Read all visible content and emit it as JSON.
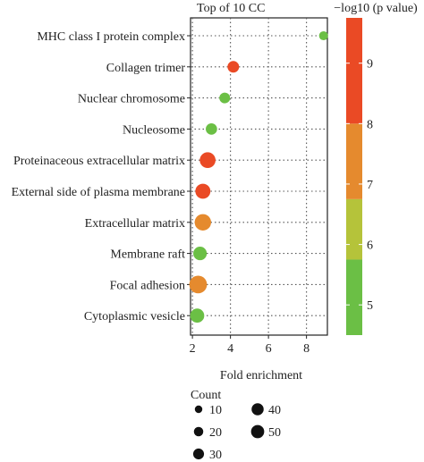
{
  "chart_data": {
    "type": "scatter",
    "title": "Top of 10 CC",
    "xlabel": "Fold enrichment",
    "ylabel": "",
    "xlim": [
      1.9,
      9.1
    ],
    "x_ticks": [
      "2",
      "4",
      "6",
      "8"
    ],
    "categories": [
      "MHC class I protein complex",
      "Collagen trimer",
      "Nuclear chromosome",
      "Nucleosome",
      "Proteinaceous extracellular matrix",
      "External side of plasma membrane",
      "Extracellular matrix",
      "Membrane raft",
      "Focal adhesion",
      "Cytoplasmic vesicle"
    ],
    "points": [
      {
        "term": "MHC class I protein complex",
        "fold_enrichment": 8.9,
        "count": 6,
        "neg_log10_p": 5.0
      },
      {
        "term": "Collagen trimer",
        "fold_enrichment": 4.15,
        "count": 14,
        "neg_log10_p": 9.3
      },
      {
        "term": "Nuclear chromosome",
        "fold_enrichment": 3.7,
        "count": 11,
        "neg_log10_p": 5.0
      },
      {
        "term": "Nucleosome",
        "fold_enrichment": 3.0,
        "count": 13,
        "neg_log10_p": 5.0
      },
      {
        "term": "Proteinaceous extracellular matrix",
        "fold_enrichment": 2.8,
        "count": 34,
        "neg_log10_p": 9.6
      },
      {
        "term": "External side of plasma membrane",
        "fold_enrichment": 2.55,
        "count": 30,
        "neg_log10_p": 9.5
      },
      {
        "term": "Extracellular matrix",
        "fold_enrichment": 2.55,
        "count": 38,
        "neg_log10_p": 7.4
      },
      {
        "term": "Membrane raft",
        "fold_enrichment": 2.4,
        "count": 22,
        "neg_log10_p": 5.2
      },
      {
        "term": "Focal adhesion",
        "fold_enrichment": 2.3,
        "count": 46,
        "neg_log10_p": 7.2
      },
      {
        "term": "Cytoplasmic vesicle",
        "fold_enrichment": 2.25,
        "count": 25,
        "neg_log10_p": 5.0
      }
    ],
    "grid": true,
    "colorbar": {
      "title": "−log10 (p value)",
      "ticks": [
        "5",
        "6",
        "7",
        "8",
        "9"
      ],
      "range": [
        4.5,
        9.75
      ],
      "bands": [
        {
          "from": 4.5,
          "to": 5.75,
          "color": "#6bbf45"
        },
        {
          "from": 5.75,
          "to": 6.75,
          "color": "#b5c33a"
        },
        {
          "from": 6.75,
          "to": 8.0,
          "color": "#e58a2e"
        },
        {
          "from": 8.0,
          "to": 9.75,
          "color": "#ea4a25"
        }
      ]
    },
    "size_legend": {
      "title": "Count",
      "items": [
        "10",
        "20",
        "30",
        "40",
        "50"
      ],
      "values": [
        10,
        20,
        30,
        40,
        50
      ]
    }
  }
}
